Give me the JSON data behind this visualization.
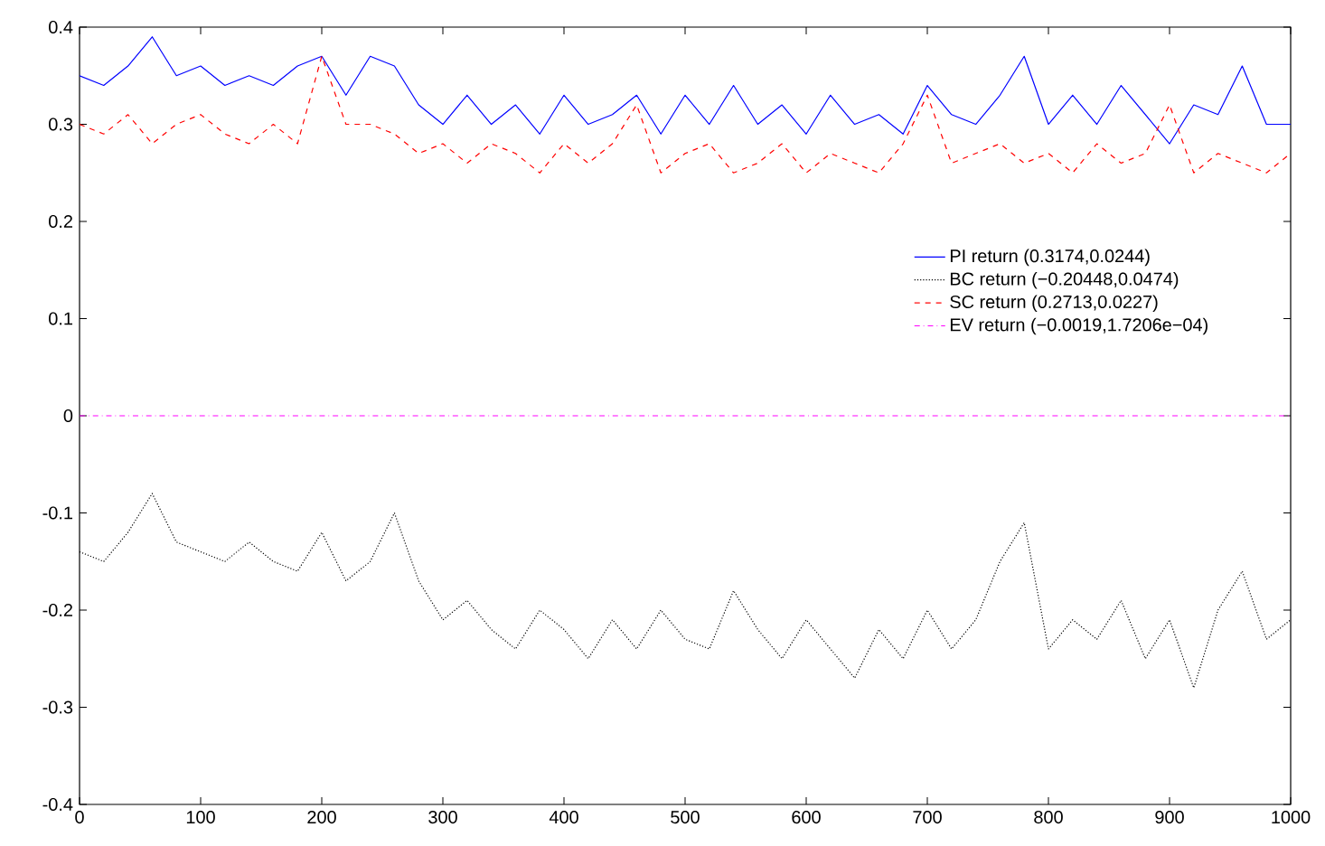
{
  "chart_data": {
    "type": "line",
    "x": [
      0,
      20,
      40,
      60,
      80,
      100,
      120,
      140,
      160,
      180,
      200,
      220,
      240,
      260,
      280,
      300,
      320,
      340,
      360,
      380,
      400,
      420,
      440,
      460,
      480,
      500,
      520,
      540,
      560,
      580,
      600,
      620,
      640,
      660,
      680,
      700,
      720,
      740,
      760,
      780,
      800,
      820,
      840,
      860,
      880,
      900,
      920,
      940,
      960,
      980,
      1000
    ],
    "series": [
      {
        "name": "PI return (0.3174,0.0244)",
        "color": "#0000ff",
        "line_style": "solid",
        "values": [
          0.35,
          0.34,
          0.36,
          0.39,
          0.35,
          0.36,
          0.34,
          0.35,
          0.34,
          0.36,
          0.37,
          0.33,
          0.37,
          0.36,
          0.32,
          0.3,
          0.33,
          0.3,
          0.32,
          0.29,
          0.33,
          0.3,
          0.31,
          0.33,
          0.29,
          0.33,
          0.3,
          0.34,
          0.3,
          0.32,
          0.29,
          0.33,
          0.3,
          0.31,
          0.29,
          0.34,
          0.31,
          0.3,
          0.33,
          0.37,
          0.3,
          0.33,
          0.3,
          0.34,
          0.31,
          0.28,
          0.32,
          0.31,
          0.36,
          0.3,
          0.3
        ]
      },
      {
        "name": "BC return (−0.20448,0.0474)",
        "color": "#000000",
        "line_style": "dotted",
        "values": [
          -0.14,
          -0.15,
          -0.12,
          -0.08,
          -0.13,
          -0.14,
          -0.15,
          -0.13,
          -0.15,
          -0.16,
          -0.12,
          -0.17,
          -0.15,
          -0.1,
          -0.17,
          -0.21,
          -0.19,
          -0.22,
          -0.24,
          -0.2,
          -0.22,
          -0.25,
          -0.21,
          -0.24,
          -0.2,
          -0.23,
          -0.24,
          -0.18,
          -0.22,
          -0.25,
          -0.21,
          -0.24,
          -0.27,
          -0.22,
          -0.25,
          -0.2,
          -0.24,
          -0.21,
          -0.15,
          -0.11,
          -0.24,
          -0.21,
          -0.23,
          -0.19,
          -0.25,
          -0.21,
          -0.28,
          -0.2,
          -0.16,
          -0.23,
          -0.21
        ]
      },
      {
        "name": "SC return (0.2713,0.0227)",
        "color": "#ff0000",
        "line_style": "dashed",
        "values": [
          0.3,
          0.29,
          0.31,
          0.28,
          0.3,
          0.31,
          0.29,
          0.28,
          0.3,
          0.28,
          0.37,
          0.3,
          0.3,
          0.29,
          0.27,
          0.28,
          0.26,
          0.28,
          0.27,
          0.25,
          0.28,
          0.26,
          0.28,
          0.32,
          0.25,
          0.27,
          0.28,
          0.25,
          0.26,
          0.28,
          0.25,
          0.27,
          0.26,
          0.25,
          0.28,
          0.33,
          0.26,
          0.27,
          0.28,
          0.26,
          0.27,
          0.25,
          0.28,
          0.26,
          0.27,
          0.32,
          0.25,
          0.27,
          0.26,
          0.25,
          0.27
        ]
      },
      {
        "name": "EV return (−0.0019,1.7206e−04)",
        "color": "#ff00ff",
        "line_style": "dashdot",
        "x": [
          0,
          1000
        ],
        "values": [
          0,
          0
        ]
      }
    ],
    "xlim": [
      0,
      1000
    ],
    "xticks": [
      0,
      100,
      200,
      300,
      400,
      500,
      600,
      700,
      800,
      900,
      1000
    ],
    "ylim": [
      -0.4,
      0.4
    ],
    "yticks": [
      -0.4,
      -0.3,
      -0.2,
      -0.1,
      0,
      0.1,
      0.2,
      0.3,
      0.4
    ],
    "legend": "right",
    "grid": false,
    "marker": "none"
  }
}
